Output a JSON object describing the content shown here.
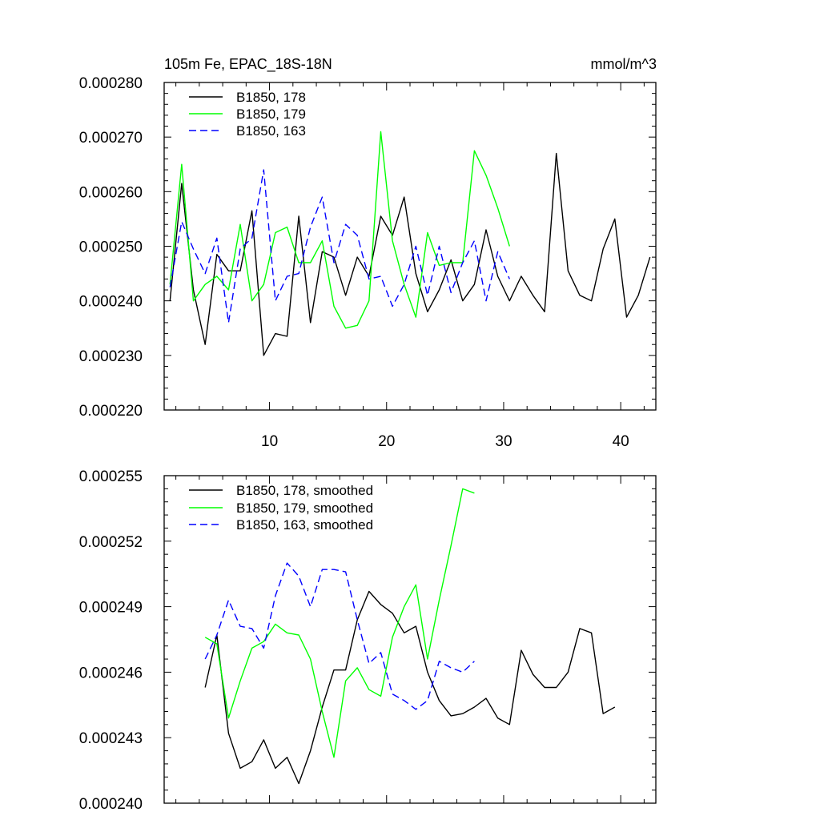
{
  "chart_data": [
    {
      "type": "line",
      "title": "105m Fe, EPAC_18S-18N",
      "units": "mmol/m^3",
      "xlabel": "",
      "ylabel": "",
      "xlim": [
        1,
        43
      ],
      "ylim": [
        0.00022,
        0.00028
      ],
      "xticks": [
        10,
        20,
        30,
        40
      ],
      "xtick_labels": [
        "10",
        "20",
        "30",
        "40"
      ],
      "yticks": [
        0.00022,
        0.00023,
        0.00024,
        0.00025,
        0.00026,
        0.00027,
        0.00028
      ],
      "ytick_labels": [
        "0.000220",
        "0.000230",
        "0.000240",
        "0.000250",
        "0.000260",
        "0.000270",
        "0.000280"
      ],
      "legend_position": "top-left",
      "series": [
        {
          "name": "B1850, 178",
          "color": "#000000",
          "dash": "solid",
          "x": [
            1.5,
            2.5,
            3.5,
            4.5,
            5.5,
            6.5,
            7.5,
            8.5,
            9.5,
            10.5,
            11.5,
            12.5,
            13.5,
            14.5,
            15.5,
            16.5,
            17.5,
            18.5,
            19.5,
            20.5,
            21.5,
            22.5,
            23.5,
            24.5,
            25.5,
            26.5,
            27.5,
            28.5,
            29.5,
            30.5,
            31.5,
            32.5,
            33.5,
            34.5,
            35.5,
            36.5,
            37.5,
            38.5,
            39.5,
            40.5,
            41.5,
            42.5
          ],
          "y": [
            0.00024,
            0.0002615,
            0.000242,
            0.000232,
            0.0002485,
            0.0002455,
            0.0002455,
            0.0002565,
            0.00023,
            0.000234,
            0.0002335,
            0.0002555,
            0.000236,
            0.000249,
            0.000248,
            0.000241,
            0.000248,
            0.0002445,
            0.0002555,
            0.000252,
            0.000259,
            0.000245,
            0.000238,
            0.000242,
            0.0002475,
            0.00024,
            0.000243,
            0.000253,
            0.0002445,
            0.00024,
            0.0002445,
            0.000241,
            0.000238,
            0.000267,
            0.0002455,
            0.000241,
            0.00024,
            0.0002495,
            0.000255,
            0.000237,
            0.000241,
            0.000248
          ]
        },
        {
          "name": "B1850, 179",
          "color": "#00ff00",
          "dash": "solid",
          "x": [
            1.5,
            2.5,
            3.5,
            4.5,
            5.5,
            6.5,
            7.5,
            8.5,
            9.5,
            10.5,
            11.5,
            12.5,
            13.5,
            14.5,
            15.5,
            16.5,
            17.5,
            18.5,
            19.5,
            20.5,
            21.5,
            22.5,
            23.5,
            24.5,
            25.5,
            26.5,
            27.5,
            28.5,
            29.5,
            30.5
          ],
          "y": [
            0.000243,
            0.000265,
            0.00024,
            0.000243,
            0.0002445,
            0.000242,
            0.000254,
            0.00024,
            0.000243,
            0.0002525,
            0.0002535,
            0.000247,
            0.000247,
            0.000251,
            0.000239,
            0.000235,
            0.0002355,
            0.00024,
            0.000271,
            0.000251,
            0.000243,
            0.000237,
            0.0002525,
            0.0002465,
            0.000247,
            0.000247,
            0.0002675,
            0.000263,
            0.000257,
            0.00025
          ]
        },
        {
          "name": "B1850, 163",
          "color": "#0000ff",
          "dash": "dashed",
          "x": [
            1.5,
            2.5,
            3.5,
            4.5,
            5.5,
            6.5,
            7.5,
            8.5,
            9.5,
            10.5,
            11.5,
            12.5,
            13.5,
            14.5,
            15.5,
            16.5,
            17.5,
            18.5,
            19.5,
            20.5,
            21.5,
            22.5,
            23.5,
            24.5,
            25.5,
            26.5,
            27.5,
            28.5,
            29.5,
            30.5
          ],
          "y": [
            0.0002425,
            0.0002545,
            0.0002495,
            0.000245,
            0.0002515,
            0.000236,
            0.0002495,
            0.0002515,
            0.000264,
            0.00024,
            0.0002445,
            0.000245,
            0.0002535,
            0.000259,
            0.000247,
            0.000254,
            0.000252,
            0.000244,
            0.0002445,
            0.000239,
            0.000243,
            0.00025,
            0.000241,
            0.00025,
            0.0002415,
            0.000247,
            0.000251,
            0.00024,
            0.000249,
            0.000244
          ]
        }
      ]
    },
    {
      "type": "line",
      "title": "",
      "xlabel": "",
      "ylabel": "",
      "xlim": [
        1,
        43
      ],
      "ylim": [
        0.00024,
        0.000255
      ],
      "xticks": [
        10,
        20,
        30,
        40
      ],
      "xtick_labels": [],
      "yticks": [
        0.00024,
        0.000243,
        0.000246,
        0.000249,
        0.000252,
        0.000255
      ],
      "ytick_labels": [
        "0.000240",
        "0.000243",
        "0.000246",
        "0.000249",
        "0.000252",
        "0.000255"
      ],
      "legend_position": "top-left",
      "series": [
        {
          "name": "B1850, 178, smoothed",
          "color": "#000000",
          "dash": "solid",
          "x": [
            4.5,
            5.5,
            6.5,
            7.5,
            8.5,
            9.5,
            10.5,
            11.5,
            12.5,
            13.5,
            14.5,
            15.5,
            16.5,
            17.5,
            18.5,
            19.5,
            20.5,
            21.5,
            22.5,
            23.5,
            24.5,
            25.5,
            26.5,
            27.5,
            28.5,
            29.5,
            30.5,
            31.5,
            32.5,
            33.5,
            34.5,
            35.5,
            36.5,
            37.5,
            38.5,
            39.5
          ],
          "y": [
            0.0002453,
            0.0002477,
            0.0002432,
            0.0002416,
            0.0002419,
            0.0002429,
            0.0002416,
            0.0002421,
            0.0002409,
            0.0002424,
            0.0002444,
            0.0002461,
            0.0002461,
            0.0002484,
            0.0002497,
            0.0002491,
            0.0002487,
            0.0002478,
            0.0002481,
            0.000246,
            0.0002447,
            0.000244,
            0.0002441,
            0.0002444,
            0.0002448,
            0.0002439,
            0.0002436,
            0.000247,
            0.0002459,
            0.0002453,
            0.0002453,
            0.000246,
            0.000248,
            0.0002478,
            0.0002441,
            0.0002444
          ]
        },
        {
          "name": "B1850, 179, smoothed",
          "color": "#00ff00",
          "dash": "solid",
          "x": [
            4.5,
            5.5,
            6.5,
            7.5,
            8.5,
            9.5,
            10.5,
            11.5,
            12.5,
            13.5,
            14.5,
            15.5,
            16.5,
            17.5,
            18.5,
            19.5,
            20.5,
            21.5,
            22.5,
            23.5,
            24.5,
            25.5,
            26.5,
            27.5
          ],
          "y": [
            0.0002476,
            0.0002473,
            0.0002439,
            0.0002456,
            0.0002471,
            0.0002474,
            0.0002482,
            0.0002478,
            0.0002477,
            0.0002466,
            0.0002442,
            0.0002421,
            0.0002456,
            0.0002462,
            0.0002452,
            0.0002449,
            0.0002476,
            0.000249,
            0.00025,
            0.0002466,
            0.0002493,
            0.0002518,
            0.0002544,
            0.0002542
          ]
        },
        {
          "name": "B1850, 163, smoothed",
          "color": "#0000ff",
          "dash": "dashed",
          "x": [
            4.5,
            5.5,
            6.5,
            7.5,
            8.5,
            9.5,
            10.5,
            11.5,
            12.5,
            13.5,
            14.5,
            15.5,
            16.5,
            17.5,
            18.5,
            19.5,
            20.5,
            21.5,
            22.5,
            23.5,
            24.5,
            25.5,
            26.5,
            27.5
          ],
          "y": [
            0.0002466,
            0.0002477,
            0.0002493,
            0.0002481,
            0.000248,
            0.0002471,
            0.0002495,
            0.000251,
            0.0002504,
            0.000249,
            0.0002507,
            0.0002507,
            0.0002506,
            0.0002484,
            0.0002464,
            0.0002469,
            0.000245,
            0.0002447,
            0.0002443,
            0.0002447,
            0.0002465,
            0.0002462,
            0.000246,
            0.0002465
          ]
        }
      ]
    }
  ]
}
